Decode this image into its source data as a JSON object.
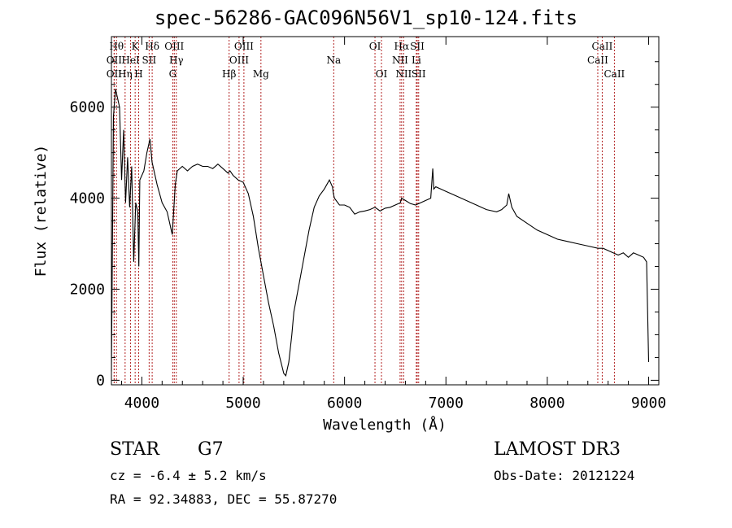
{
  "page": {
    "title": "spec-56286-GAC096N56V1_sp10-124.fits",
    "object_class": "STAR",
    "subclass": "G7",
    "survey": "LAMOST DR3",
    "redshift_text": "cz = -6.4 ± 5.2 km/s",
    "obs_date_text": "Obs-Date: 20121224",
    "coords_text": "RA =  92.34883, DEC =  55.87270"
  },
  "chart_data": {
    "type": "line",
    "xlabel": "Wavelength (Å)",
    "ylabel": "Flux (relative)",
    "xlim": [
      3700,
      9100
    ],
    "ylim": [
      -100,
      7550
    ],
    "xticks": [
      4000,
      5000,
      6000,
      7000,
      8000,
      9000
    ],
    "yticks": [
      0,
      2000,
      4000,
      6000
    ],
    "grid": false,
    "spectrum": {
      "x": [
        3700,
        3720,
        3740,
        3760,
        3780,
        3800,
        3820,
        3840,
        3860,
        3880,
        3900,
        3920,
        3940,
        3960,
        3970,
        3980,
        4000,
        4020,
        4050,
        4080,
        4100,
        4150,
        4200,
        4250,
        4300,
        4330,
        4350,
        4400,
        4450,
        4500,
        4550,
        4600,
        4650,
        4700,
        4750,
        4800,
        4850,
        4870,
        4900,
        4950,
        5000,
        5050,
        5100,
        5150,
        5200,
        5250,
        5300,
        5350,
        5400,
        5420,
        5450,
        5480,
        5500,
        5550,
        5600,
        5650,
        5700,
        5750,
        5800,
        5850,
        5880,
        5890,
        5900,
        5950,
        6000,
        6050,
        6100,
        6150,
        6200,
        6250,
        6300,
        6350,
        6400,
        6450,
        6500,
        6550,
        6563,
        6600,
        6650,
        6700,
        6750,
        6800,
        6850,
        6870,
        6880,
        6900,
        6950,
        7000,
        7050,
        7100,
        7200,
        7300,
        7400,
        7500,
        7550,
        7600,
        7620,
        7650,
        7700,
        7800,
        7900,
        8000,
        8100,
        8200,
        8300,
        8400,
        8500,
        8550,
        8600,
        8650,
        8700,
        8750,
        8800,
        8850,
        8900,
        8950,
        8980,
        9000
      ],
      "y": [
        200,
        5800,
        6400,
        6200,
        6000,
        4400,
        5500,
        3900,
        4900,
        3800,
        4700,
        2600,
        3900,
        3700,
        2500,
        4400,
        4500,
        4600,
        5000,
        5300,
        4800,
        4300,
        3900,
        3700,
        3200,
        4300,
        4600,
        4700,
        4600,
        4700,
        4750,
        4700,
        4700,
        4650,
        4750,
        4650,
        4550,
        4600,
        4500,
        4400,
        4350,
        4100,
        3600,
        2900,
        2300,
        1700,
        1200,
        600,
        150,
        100,
        400,
        1000,
        1500,
        2100,
        2700,
        3300,
        3800,
        4050,
        4200,
        4400,
        4250,
        4100,
        4000,
        3850,
        3850,
        3800,
        3650,
        3700,
        3720,
        3750,
        3800,
        3720,
        3780,
        3800,
        3850,
        3900,
        4000,
        3950,
        3880,
        3850,
        3900,
        3950,
        4000,
        4650,
        4200,
        4250,
        4200,
        4150,
        4100,
        4050,
        3950,
        3850,
        3750,
        3700,
        3750,
        3850,
        4100,
        3800,
        3600,
        3450,
        3300,
        3200,
        3100,
        3050,
        3000,
        2950,
        2900,
        2900,
        2850,
        2800,
        2750,
        2800,
        2700,
        2800,
        2750,
        2700,
        2600,
        400
      ]
    },
    "line_markers": [
      {
        "label": "OII",
        "x": 3727,
        "row": 2
      },
      {
        "label": "OII",
        "x": 3727,
        "row": 3
      },
      {
        "label": "Hθ",
        "x": 3750,
        "row": 1
      },
      {
        "label": "Hη",
        "x": 3835,
        "row": 3
      },
      {
        "label": "HeI",
        "x": 3889,
        "row": 2
      },
      {
        "label": "K",
        "x": 3934,
        "row": 1
      },
      {
        "label": "H",
        "x": 3969,
        "row": 3
      },
      {
        "label": "SII",
        "x": 4072,
        "row": 2
      },
      {
        "label": "Hδ",
        "x": 4102,
        "row": 1
      },
      {
        "label": "OIII",
        "x": 4320,
        "row": 1
      },
      {
        "label": "Hγ",
        "x": 4340,
        "row": 2
      },
      {
        "label": "G",
        "x": 4305,
        "row": 3
      },
      {
        "label": "Hβ",
        "x": 4861,
        "row": 3
      },
      {
        "label": "OIII",
        "x": 4959,
        "row": 2
      },
      {
        "label": "OIII",
        "x": 5007,
        "row": 1
      },
      {
        "label": "Mg",
        "x": 5175,
        "row": 3
      },
      {
        "label": "Na",
        "x": 5893,
        "row": 2
      },
      {
        "label": "OI",
        "x": 6300,
        "row": 1
      },
      {
        "label": "OI",
        "x": 6364,
        "row": 3
      },
      {
        "label": "NII",
        "x": 6548,
        "row": 2
      },
      {
        "label": "Hα",
        "x": 6563,
        "row": 1
      },
      {
        "label": "NII",
        "x": 6583,
        "row": 3
      },
      {
        "label": "SII",
        "x": 6717,
        "row": 1
      },
      {
        "label": "Li",
        "x": 6708,
        "row": 2
      },
      {
        "label": "SII",
        "x": 6731,
        "row": 3
      },
      {
        "label": "CaII",
        "x": 8498,
        "row": 2
      },
      {
        "label": "CaII",
        "x": 8542,
        "row": 1
      },
      {
        "label": "CaII",
        "x": 8662,
        "row": 3
      }
    ]
  }
}
